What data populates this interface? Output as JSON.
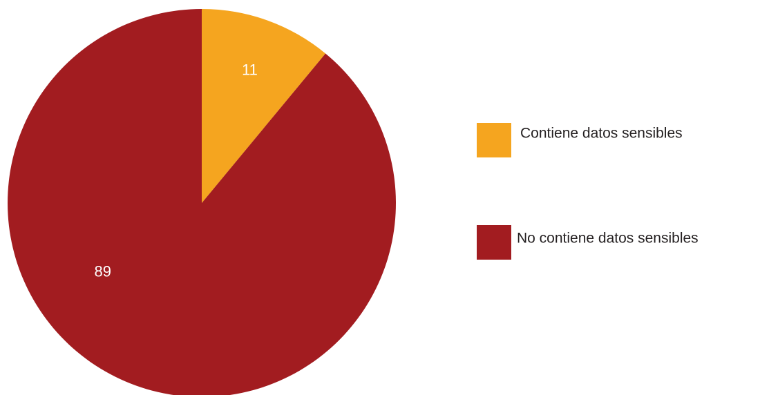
{
  "chart_data": {
    "type": "pie",
    "slices": [
      {
        "label": "Contiene datos sensibles",
        "value": 11,
        "color": "#f5a51f"
      },
      {
        "label": "No contiene datos sensibles",
        "value": 89,
        "color": "#a21c20"
      }
    ],
    "start_angle_deg": 0,
    "direction": "clockwise",
    "data_labels": true,
    "legend": {
      "placement": "right"
    }
  }
}
